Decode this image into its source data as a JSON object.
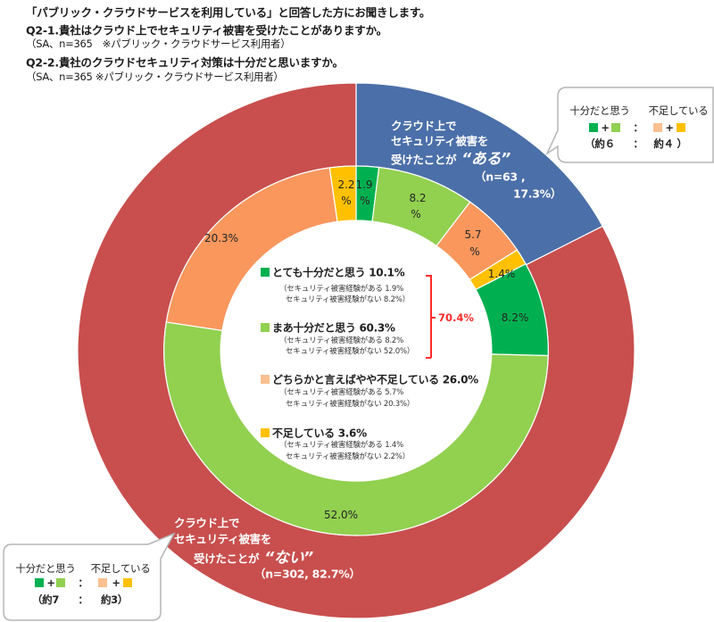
{
  "header": {
    "line1": "「パブリック・クラウドサービスを利用している」と回答した方にお聞きします。",
    "q1": "Q2-1.貴社はクラウド上でセキュリティ被害を受けたことがありますか。",
    "q1_note": "（SA、n=365　※パブリック・クラウドサービス利用者）",
    "q2": "Q2-2.貴社のクラウドセキュリティ対策は十分だと思いますか。",
    "q2_note": "（SA、n=365 ※パブリック・クラウドサービス利用者）"
  },
  "chart_data": {
    "type": "pie",
    "subtype": "double-donut",
    "title": "Q2-1.貴社はクラウド上でセキュリティ被害を受けたことがありますか。 / Q2-2.貴社のクラウドセキュリティ対策は十分だと思いますか。",
    "start_angle": "top, clockwise",
    "outer_ring": {
      "categories": [
        "クラウド上でセキュリティ被害を受けたことが“ある”",
        "クラウド上でセキュリティ被害を受けたことが“ない”"
      ],
      "values": [
        17.3,
        82.7
      ],
      "n": [
        63,
        302
      ],
      "colors": [
        "#4b6fa8",
        "#c84f4e"
      ]
    },
    "inner_ring": {
      "categories": [
        "とても十分だと思う / セキュリティ被害経験がある",
        "まあ十分だと思う / セキュリティ被害経験がある",
        "どちらかと言えばやや不足している / セキュリティ被害経験がある",
        "不足している / セキュリティ被害経験がある",
        "とても十分だと思う / セキュリティ被害経験がない",
        "まあ十分だと思う / セキュリティ被害経験がない",
        "どちらかと言えばやや不足している / セキュリティ被害経験がない",
        "不足している / セキュリティ被害経験がない"
      ],
      "values": [
        1.9,
        8.2,
        5.7,
        1.4,
        8.2,
        52.0,
        20.3,
        2.2
      ],
      "colors": [
        "#00b050",
        "#92d050",
        "#f9975d",
        "#ffc000",
        "#00b050",
        "#92d050",
        "#f9975d",
        "#ffc000"
      ]
    },
    "legend": [
      {
        "label": "とても十分だと思う",
        "value": 10.1,
        "color": "#00b050"
      },
      {
        "label": "まあ十分だと思う",
        "value": 60.3,
        "color": "#92d050"
      },
      {
        "label": "どちらかと言えばやや不足している",
        "value": 26.0,
        "color": "#fac090"
      },
      {
        "label": "不足している",
        "value": 3.6,
        "color": "#ffc000"
      }
    ],
    "annotations": {
      "sufficient_total": 70.4,
      "ratio_with_damage": "約6 : 約4",
      "ratio_without_damage": "約7 : 約3"
    }
  },
  "data_labels": {
    "yellow_no": {
      "v": "2.2",
      "u": "%"
    },
    "dgreen_yes": {
      "v": "1.9",
      "u": "%"
    },
    "lgreen_yes": {
      "v": "8.2",
      "u": "%"
    },
    "orange_yes": {
      "v": "5.7",
      "u": "%"
    },
    "yellow_yes": "1.4%",
    "dgreen_no": "8.2%",
    "lgreen_no": "52.0%",
    "orange_no": "20.3%"
  },
  "outer_labels": {
    "aru": {
      "l1": "クラウド上で",
      "l2": "セキュリティ被害を",
      "l3": "受けたことが",
      "em": "“ある”",
      "l4": "（n=63 ,",
      "l5": "17.3%）"
    },
    "nai": {
      "l1": "クラウド上で",
      "l2": "セキュリティ被害を",
      "l3": "受けたことが",
      "em": "“ない”",
      "l4": "（n=302,  82.7%）"
    }
  },
  "legend": {
    "items": [
      {
        "title": "とても十分だと思う 10.1%",
        "sub1": "（セキュリティ被害経験がある 1.9%",
        "sub2": "セキュリティ被害経験がない  8.2%）",
        "color": "#00b050"
      },
      {
        "title": "まあ十分だと思う 60.3%",
        "sub1": "（セキュリティ被害経験がある 8.2%",
        "sub2": "セキュリティ被害経験がない  52.0%）",
        "color": "#92d050"
      },
      {
        "title": "どちらかと言えばやや不足している 26.0%",
        "sub1": "（セキュリティ被害経験がある 5.7%",
        "sub2": "セキュリティ被害経験がない  20.3%）",
        "color": "#fac090"
      },
      {
        "title": "不足している  3.6%",
        "sub1": "（セキュリティ被害経験がある 1.4%",
        "sub2": "セキュリティ被害経験がない  2.2%）",
        "color": "#ffc000"
      }
    ],
    "bracket_total": "70.4%",
    "bracket_color": "#ff2a2a"
  },
  "bubbles": {
    "top_right": {
      "h1": "十分だと思う",
      "h2": "不足している",
      "plus": "+",
      "colon": "：",
      "r1": "（約６",
      "r2": "約４ ）"
    },
    "bottom_left": {
      "h1": "十分だと思う",
      "h2": "不足している",
      "plus": "+",
      "colon": "：",
      "r1": "（約7",
      "r2": "約3）"
    }
  }
}
